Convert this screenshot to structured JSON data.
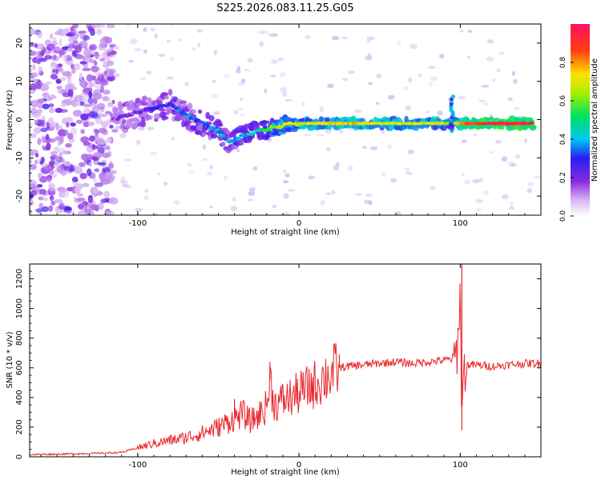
{
  "figure": {
    "title": "S225.2026.083.11.25.G05"
  },
  "chart_data": [
    {
      "type": "heatmap",
      "name": "spectrogram",
      "xlabel": "Height of straight line (km)",
      "ylabel": "Frequency (Hz)",
      "xlim": [
        -167,
        150
      ],
      "ylim": [
        -25,
        25
      ],
      "xticks": [
        -100,
        0,
        100
      ],
      "yticks": [
        20,
        10,
        0,
        -10,
        -20
      ],
      "colorbar": {
        "label": "Normalized spectral amplitude",
        "range": [
          0,
          1
        ],
        "ticks": [
          "0.0",
          "0.2",
          "0.4",
          "0.6",
          "0.8"
        ],
        "tick_values": [
          0,
          0.2,
          0.4,
          0.6,
          0.8
        ]
      },
      "signal_track": {
        "x": [
          -115,
          -100,
          -90,
          -80,
          -70,
          -60,
          -50,
          -43,
          -35,
          -25,
          -15,
          -5,
          0,
          10,
          30,
          60,
          90,
          95,
          100,
          120,
          145
        ],
        "y": [
          0,
          2,
          3,
          4,
          1,
          -1,
          -3,
          -6,
          -4,
          -3,
          -2,
          -1,
          -1,
          -1,
          -1,
          -1,
          -1,
          -1,
          -1,
          -1,
          -1
        ],
        "amplitude": [
          0.15,
          0.2,
          0.25,
          0.3,
          0.35,
          0.3,
          0.4,
          0.35,
          0.4,
          0.45,
          0.6,
          0.7,
          0.65,
          0.7,
          0.75,
          0.7,
          0.7,
          0.5,
          0.85,
          0.95,
          0.95
        ]
      },
      "noise_region_x": [
        -167,
        -115
      ]
    },
    {
      "type": "line",
      "name": "snr",
      "xlabel": "Height of straight line (km)",
      "ylabel": "SNR (10 * v/v)",
      "xlim": [
        -167,
        150
      ],
      "ylim": [
        0,
        1300
      ],
      "xticks": [
        -100,
        0,
        100
      ],
      "yticks": [
        0,
        200,
        400,
        600,
        800,
        1000,
        1200
      ],
      "series": [
        {
          "name": "SNR",
          "color": "#e8262b",
          "x": [
            -167,
            -140,
            -120,
            -110,
            -100,
            -90,
            -80,
            -70,
            -60,
            -50,
            -45,
            -40,
            -35,
            -30,
            -25,
            -20,
            -18,
            -15,
            -10,
            -5,
            0,
            5,
            10,
            15,
            20,
            25,
            30,
            40,
            50,
            60,
            70,
            80,
            90,
            95,
            98,
            100,
            101,
            102,
            104,
            110,
            120,
            130,
            140,
            150
          ],
          "y": [
            15,
            20,
            25,
            30,
            60,
            90,
            110,
            130,
            160,
            200,
            230,
            260,
            290,
            240,
            280,
            340,
            520,
            350,
            380,
            400,
            430,
            460,
            490,
            530,
            560,
            600,
            610,
            620,
            630,
            640,
            630,
            640,
            650,
            660,
            700,
            1100,
            250,
            560,
            620,
            620,
            610,
            620,
            630,
            630
          ],
          "spikes": [
            {
              "x": -40,
              "y": 390
            },
            {
              "x": -18,
              "y": 640
            },
            {
              "x": 25,
              "y": 690
            },
            {
              "x": 101,
              "y": 1300
            },
            {
              "x": 101,
              "y": 180
            }
          ]
        }
      ]
    }
  ]
}
